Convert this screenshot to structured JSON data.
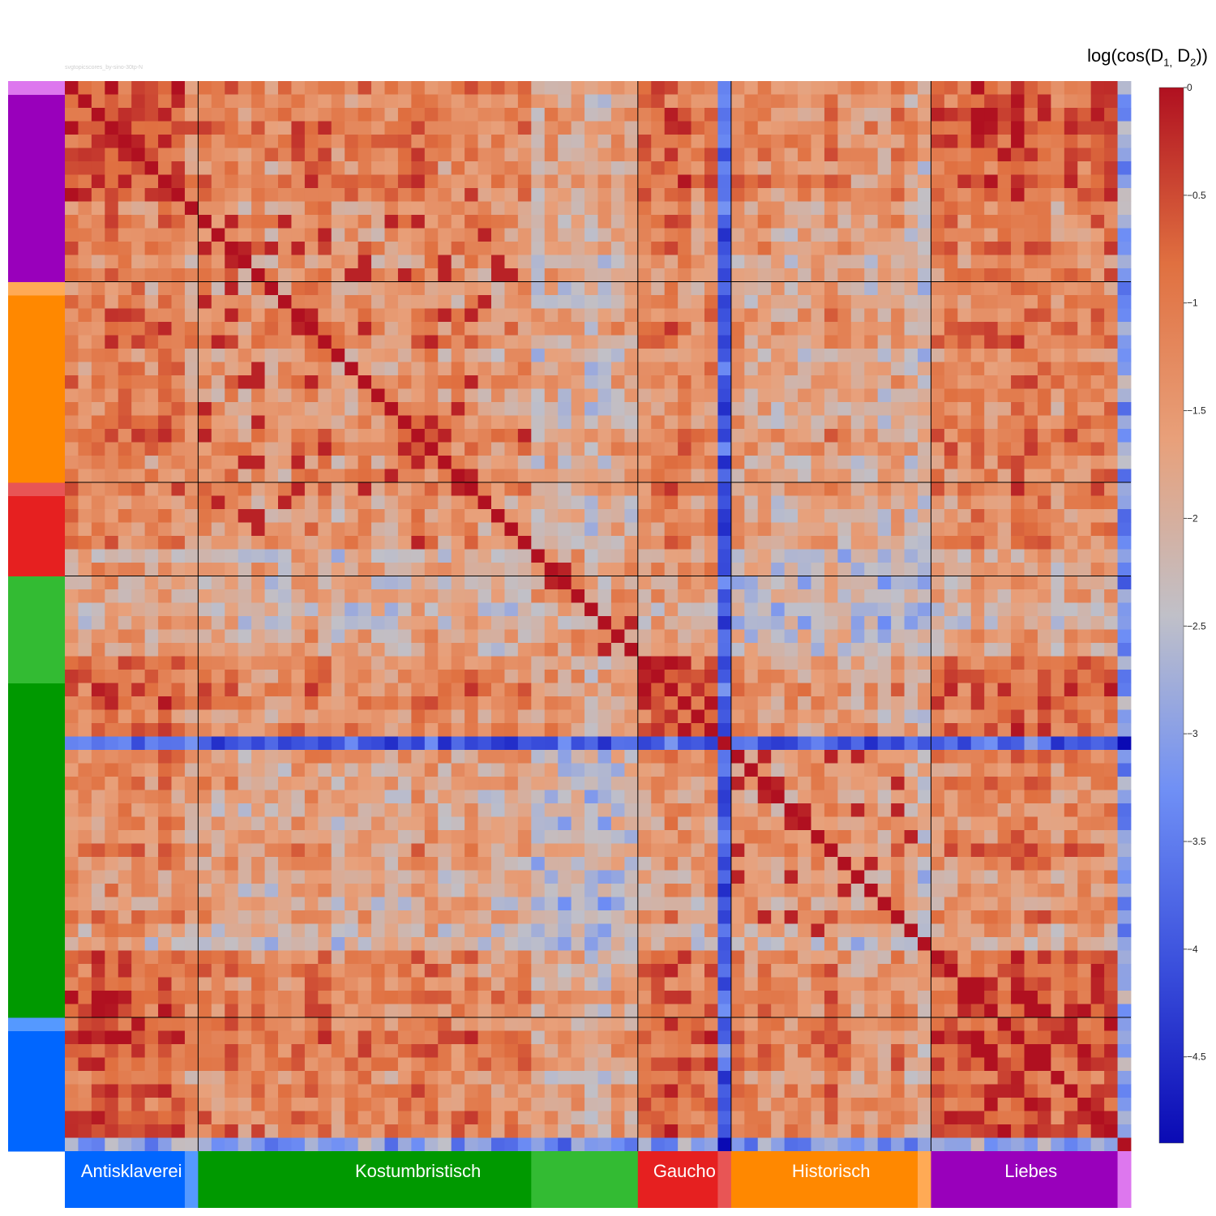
{
  "watermark": "svgtopicscores_by-sino-30tp-N",
  "colorbar": {
    "title_prefix": "log(cos(D",
    "title_sub1": "1,",
    "title_mid": " D",
    "title_sub2": "2",
    "title_suffix": "))",
    "min": -4.9,
    "max": 0,
    "ticks": [
      0,
      -0.5,
      -1,
      -1.5,
      -2,
      -2.5,
      -3,
      -3.5,
      -4,
      -4.5
    ],
    "tick_labels": [
      "0",
      "−0.5",
      "−1",
      "−1.5",
      "−2",
      "−2.5",
      "−3",
      "−3.5",
      "−4",
      "−4.5"
    ],
    "colorscale": [
      "#0a0ab4",
      "#3a4fdc",
      "#6f8ff5",
      "#c0c0c8",
      "#e8a07a",
      "#e07040",
      "#b01020"
    ]
  },
  "chart_data": {
    "type": "heatmap",
    "n": 80,
    "groups": [
      {
        "label": "Antisklaverei",
        "count": 9,
        "color": "#0066ff"
      },
      {
        "label": "",
        "count": 1,
        "color": "#5599ff"
      },
      {
        "label": "Kostumbristisch",
        "count": 25,
        "color": "#009900"
      },
      {
        "label": "",
        "count": 8,
        "color": "#33bb33"
      },
      {
        "label": "Gaucho",
        "count": 6,
        "color": "#e62020"
      },
      {
        "label": "",
        "count": 1,
        "color": "#e85555"
      },
      {
        "label": "Historisch",
        "count": 14,
        "color": "#ff8800"
      },
      {
        "label": "",
        "count": 1,
        "color": "#ffaa55"
      },
      {
        "label": "Liebes",
        "count": 14,
        "color": "#9900bb"
      },
      {
        "label": "",
        "count": 1,
        "color": "#dd77ee"
      }
    ],
    "block_means": [
      [
        -0.8,
        -1.6,
        -1.2,
        -1.9,
        -1.0,
        -3.5,
        -1.4,
        -1.8,
        -0.7,
        -2.8
      ],
      [
        -1.6,
        -1.0,
        -1.7,
        -2.0,
        -1.6,
        -3.0,
        -1.8,
        -2.0,
        -1.5,
        -3.0
      ],
      [
        -1.2,
        -1.7,
        -1.4,
        -2.0,
        -1.3,
        -3.6,
        -1.7,
        -2.0,
        -1.2,
        -2.9
      ],
      [
        -1.9,
        -2.0,
        -2.0,
        -1.8,
        -1.8,
        -3.6,
        -2.4,
        -2.4,
        -1.9,
        -3.2
      ],
      [
        -1.0,
        -1.6,
        -1.3,
        -1.8,
        -0.7,
        -3.7,
        -1.5,
        -1.8,
        -0.9,
        -3.0
      ],
      [
        -3.5,
        -3.0,
        -3.6,
        -3.6,
        -3.7,
        -0.3,
        -3.6,
        -3.6,
        -3.4,
        -4.6
      ],
      [
        -1.4,
        -1.8,
        -1.7,
        -2.4,
        -1.5,
        -3.6,
        -1.4,
        -2.0,
        -1.3,
        -3.0
      ],
      [
        -1.8,
        -2.0,
        -2.0,
        -2.4,
        -1.8,
        -3.6,
        -2.0,
        -0.4,
        -1.8,
        -3.2
      ],
      [
        -0.7,
        -1.5,
        -1.2,
        -1.9,
        -0.9,
        -3.4,
        -1.3,
        -1.8,
        -0.6,
        -2.8
      ],
      [
        -2.8,
        -3.0,
        -2.9,
        -3.2,
        -3.0,
        -4.6,
        -3.0,
        -3.2,
        -2.8,
        -0.2
      ]
    ]
  }
}
